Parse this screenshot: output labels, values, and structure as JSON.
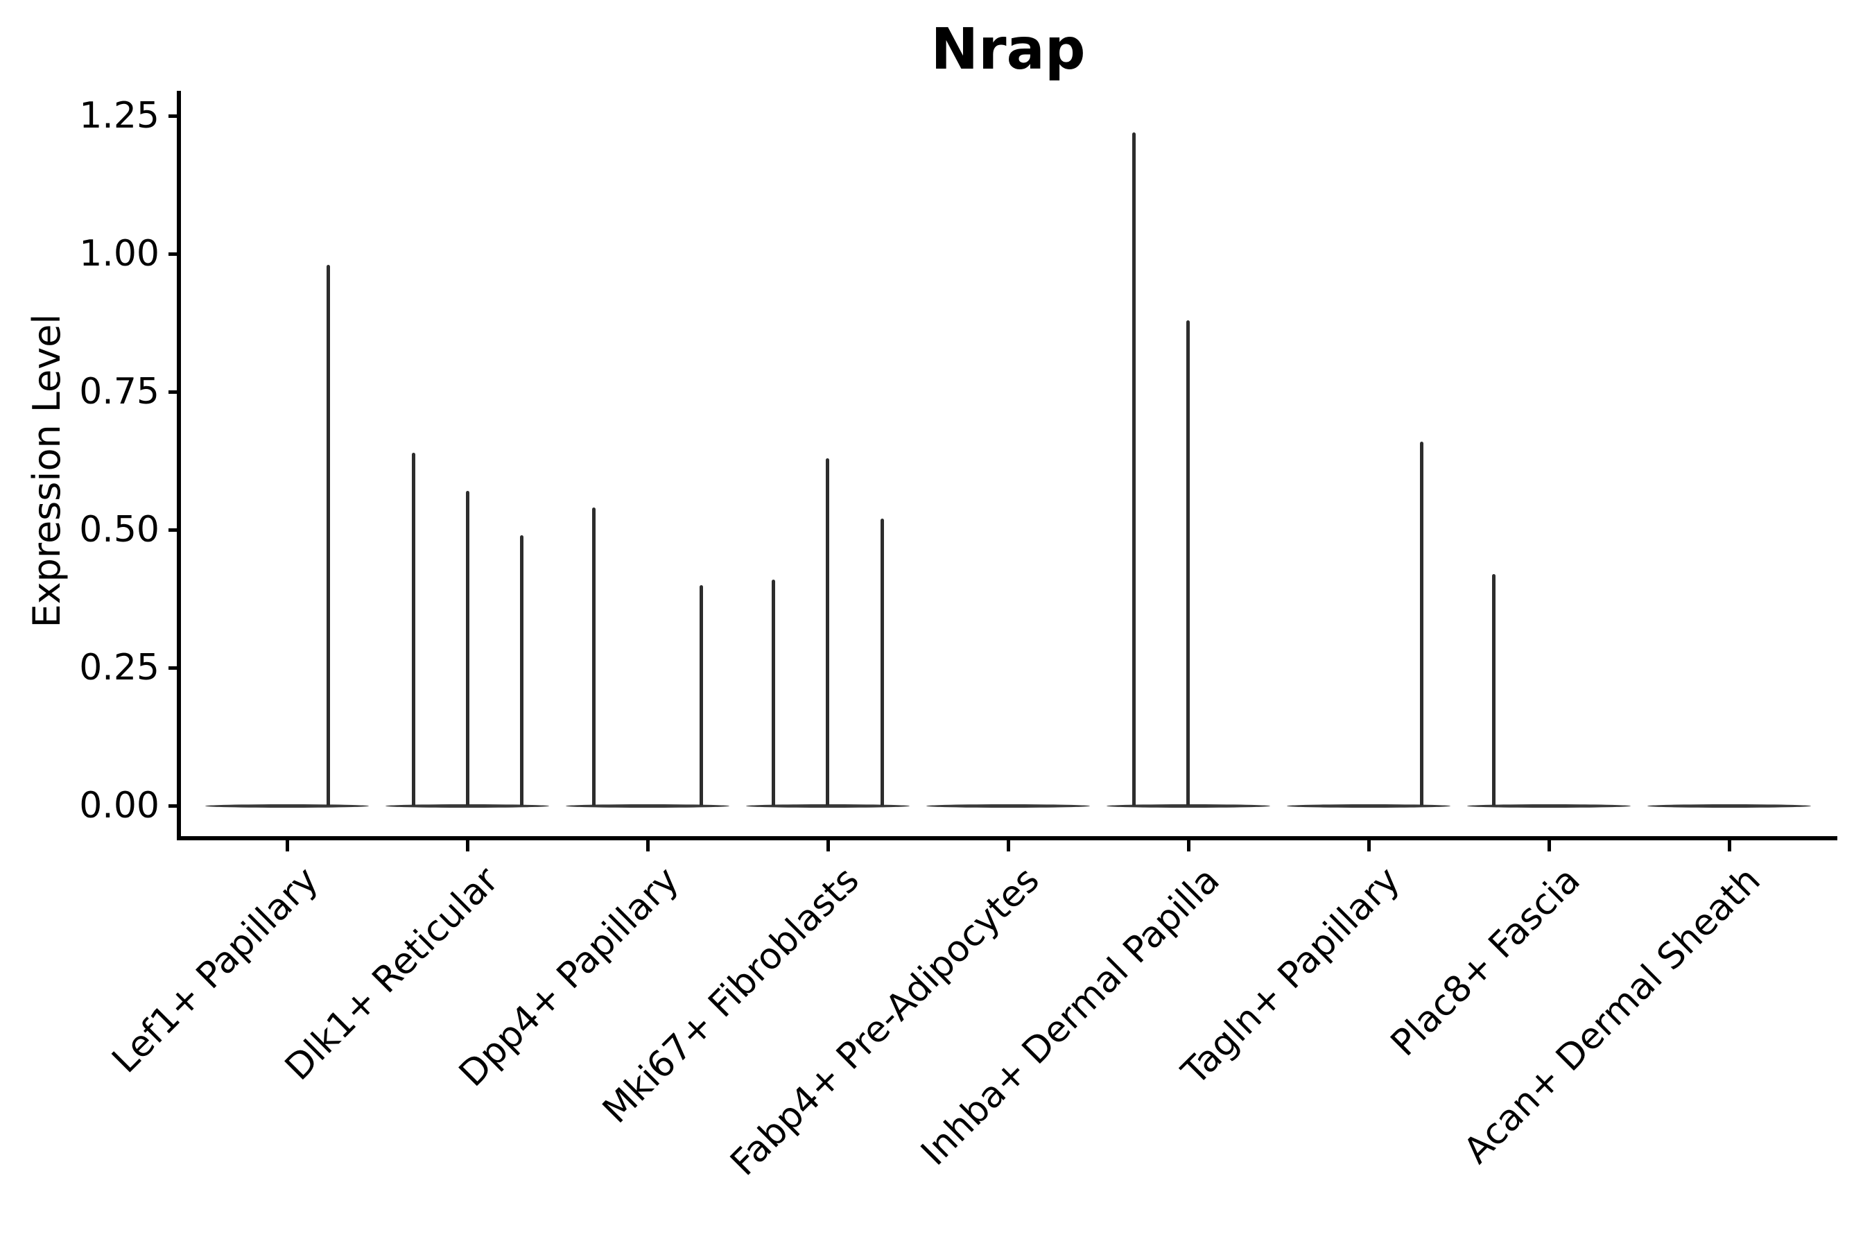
{
  "title": "Nrap",
  "y_axis": {
    "label": "Expression Level"
  },
  "chart_data": {
    "type": "violin",
    "title": "Nrap",
    "xlabel": "",
    "ylabel": "Expression Level",
    "ylim": [
      0,
      1.25
    ],
    "grid": false,
    "legend": "none",
    "yticks": [
      0,
      0.25,
      0.5,
      0.75,
      1.0,
      1.25
    ],
    "ytick_labels": [
      "0.00",
      "0.25",
      "0.50",
      "0.75",
      "1.00",
      "1.25"
    ],
    "categories": [
      "Lef1+ Papillary",
      "Dlk1+ Reticular",
      "Dpp4+ Papillary",
      "Mki67+ Fibroblasts",
      "Fabp4+ Pre-Adipocytes",
      "Inhba+ Dermal Papilla",
      "Tagln+ Papillary",
      "Plac8+ Fascia",
      "Acan+ Dermal Sheath"
    ],
    "series": [
      {
        "name": "Lef1+ Papillary",
        "baseline_value": 0,
        "spikes": [
          {
            "dx": 59,
            "value": 0.98
          }
        ]
      },
      {
        "name": "Dlk1+ Reticular",
        "baseline_value": 0,
        "spikes": [
          {
            "dx": -78,
            "value": 0.64
          },
          {
            "dx": 0,
            "value": 0.57
          },
          {
            "dx": 78,
            "value": 0.49
          }
        ]
      },
      {
        "name": "Dpp4+ Papillary",
        "baseline_value": 0,
        "spikes": [
          {
            "dx": -78,
            "value": 0.54
          },
          {
            "dx": 77,
            "value": 0.4
          }
        ]
      },
      {
        "name": "Mki67+ Fibroblasts",
        "baseline_value": 0,
        "spikes": [
          {
            "dx": -79,
            "value": 0.41
          },
          {
            "dx": -1,
            "value": 0.63
          },
          {
            "dx": 78,
            "value": 0.52
          }
        ]
      },
      {
        "name": "Fabp4+ Pre-Adipocytes",
        "baseline_value": 0,
        "spikes": []
      },
      {
        "name": "Inhba+ Dermal Papilla",
        "baseline_value": 0,
        "spikes": [
          {
            "dx": -79,
            "value": 1.22
          },
          {
            "dx": -1,
            "value": 0.88
          }
        ]
      },
      {
        "name": "Tagln+ Papillary",
        "baseline_value": 0,
        "spikes": [
          {
            "dx": 76,
            "value": 0.66
          }
        ]
      },
      {
        "name": "Plac8+ Fascia",
        "baseline_value": 0,
        "spikes": [
          {
            "dx": -80,
            "value": 0.42
          }
        ]
      },
      {
        "name": "Acan+ Dermal Sheath",
        "baseline_value": 0,
        "spikes": []
      }
    ]
  },
  "style": {
    "background": "#ffffff",
    "axis_color": "#000000",
    "text_color": "#000000",
    "spike_color": "#2d2d2d",
    "baseline_color": "#3a3a3a"
  }
}
